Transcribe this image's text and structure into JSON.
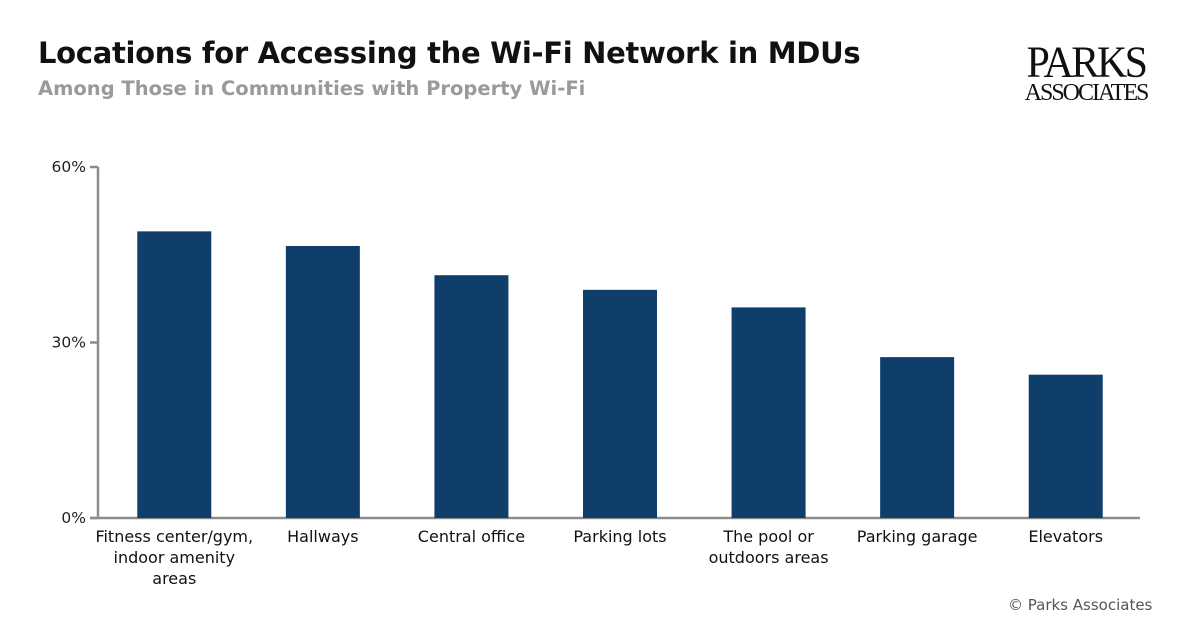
{
  "header": {
    "title": "Locations for Accessing the Wi-Fi Network in MDUs",
    "subtitle": "Among Those in Communities with Property Wi-Fi"
  },
  "logo": {
    "line1": "PARKS",
    "line2": "ASSOCIATES"
  },
  "footer": {
    "credit": "© Parks Associates"
  },
  "colors": {
    "bar": "#0e3e69",
    "axis": "#8c8c8c"
  },
  "chart_data": {
    "type": "bar",
    "categories": [
      [
        "Fitness center/gym,",
        "indoor amenity",
        "areas"
      ],
      [
        "Hallways"
      ],
      [
        "Central office"
      ],
      [
        "Parking lots"
      ],
      [
        "The pool or",
        "outdoors areas"
      ],
      [
        "Parking garage"
      ],
      [
        "Elevators"
      ]
    ],
    "values": [
      49,
      46.5,
      41.5,
      39,
      36,
      27.5,
      24.5
    ],
    "ylim": [
      0,
      60
    ],
    "yticks": [
      0,
      30,
      60
    ],
    "ytick_labels": [
      "0%",
      "30%",
      "60%"
    ],
    "grid": false,
    "legend": "none"
  }
}
